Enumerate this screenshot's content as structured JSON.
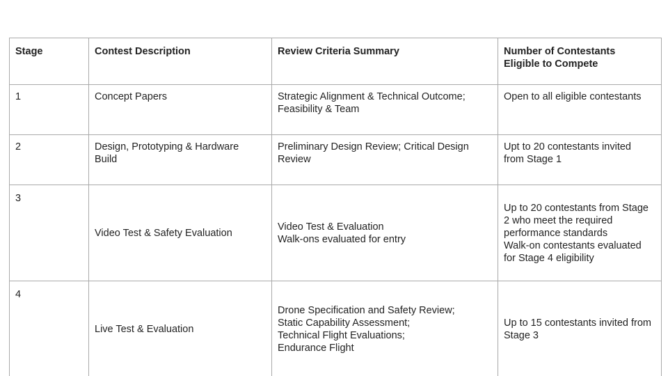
{
  "table": {
    "headers": [
      "Stage",
      "Contest Description",
      "Review Criteria Summary",
      "Number of Contestants\nEligible to Compete"
    ],
    "rows": [
      {
        "stage": "1",
        "description": "Concept Papers",
        "criteria": "Strategic Alignment & Technical Outcome;\nFeasibility & Team",
        "eligible": "Open to all eligible contestants"
      },
      {
        "stage": "2",
        "description": "Design, Prototyping & Hardware\nBuild",
        "criteria": "Preliminary Design Review; Critical Design\nReview",
        "eligible": "Upt to 20 contestants invited\nfrom Stage 1"
      },
      {
        "stage": "3",
        "description": "Video Test & Safety Evaluation",
        "criteria": "Video Test & Evaluation\nWalk-ons evaluated for entry",
        "eligible": "Up to 20 contestants from Stage\n2 who meet the required\nperformance standards\nWalk-on contestants evaluated\nfor Stage 4 eligibility"
      },
      {
        "stage": "4",
        "description": "Live Test & Evaluation",
        "criteria": "Drone Specification and Safety Review;\nStatic Capability Assessment;\nTechnical Flight Evaluations;\nEndurance Flight",
        "eligible": "Up to 15 contestants invited from\nStage 3"
      }
    ]
  }
}
